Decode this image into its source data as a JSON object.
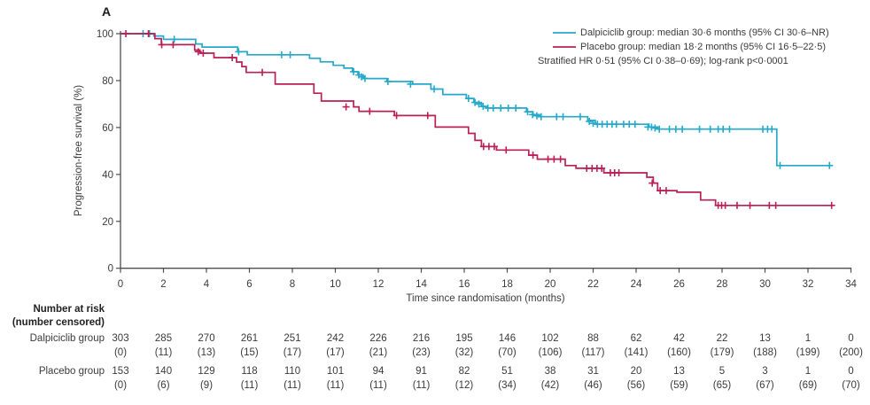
{
  "panel_label": "A",
  "colors": {
    "dalpiciclib": "#25A9CB",
    "placebo": "#BA1F55",
    "axis": "#4d4d4f",
    "text": "#3b3b3c"
  },
  "legend": {
    "entries": [
      {
        "name": "dalpiciclib",
        "label": "Dalpiciclib group: median 30·6 months (95% CI 30·6–NR)",
        "color": "#25A9CB"
      },
      {
        "name": "placebo",
        "label": "Placebo group: median 18·2 months (95% CI 16·5–22·5)",
        "color": "#BA1F55"
      }
    ],
    "note": "Stratified HR 0·51 (95% CI 0·38–0·69); log-rank p<0·0001"
  },
  "chart_data": {
    "type": "line",
    "subtype": "kaplan-meier-step",
    "title": "",
    "xlabel": "Time since randomisation (months)",
    "ylabel": "Progression-free survival (%)",
    "xlim": [
      0,
      34
    ],
    "ylim": [
      0,
      100
    ],
    "xticks": [
      0,
      2,
      4,
      6,
      8,
      10,
      12,
      14,
      16,
      18,
      20,
      22,
      24,
      26,
      28,
      30,
      32,
      34
    ],
    "yticks": [
      0,
      20,
      40,
      60,
      80,
      100
    ],
    "grid": false,
    "legend_position": "top-right",
    "series": [
      {
        "name": "Dalpiciclib group",
        "color": "#25A9CB",
        "end": 33.0,
        "steps": [
          [
            0,
            100
          ],
          [
            1.55,
            99
          ],
          [
            2.0,
            97.6
          ],
          [
            3.5,
            95.6
          ],
          [
            3.8,
            94.3
          ],
          [
            5.45,
            92.3
          ],
          [
            5.9,
            91
          ],
          [
            8.8,
            89.5
          ],
          [
            9.3,
            88
          ],
          [
            9.9,
            86.5
          ],
          [
            10.4,
            85.3
          ],
          [
            10.8,
            83.8
          ],
          [
            11.05,
            82.4
          ],
          [
            11.3,
            80.9
          ],
          [
            12.4,
            79.6
          ],
          [
            13.6,
            78.5
          ],
          [
            14.45,
            76.4
          ],
          [
            15.0,
            74.1
          ],
          [
            16.1,
            72.4
          ],
          [
            16.45,
            70.7
          ],
          [
            16.8,
            69
          ],
          [
            17.05,
            68.3
          ],
          [
            18.9,
            66.7
          ],
          [
            19.2,
            65.5
          ],
          [
            19.5,
            64.6
          ],
          [
            21.75,
            63
          ],
          [
            22.1,
            61.4
          ],
          [
            24.6,
            60.2
          ],
          [
            25.0,
            59.3
          ],
          [
            30.55,
            43.8
          ]
        ],
        "censors": [
          [
            1.05,
            100
          ],
          [
            1.35,
            100
          ],
          [
            2.5,
            97.6
          ],
          [
            5.5,
            92.3
          ],
          [
            7.5,
            91
          ],
          [
            7.9,
            91
          ],
          [
            10.85,
            83.8
          ],
          [
            11.1,
            82.4
          ],
          [
            11.22,
            81.6
          ],
          [
            11.38,
            80.9
          ],
          [
            12.45,
            79.6
          ],
          [
            13.5,
            78.5
          ],
          [
            14.6,
            76.4
          ],
          [
            16.2,
            72.4
          ],
          [
            16.5,
            70.7
          ],
          [
            16.68,
            70
          ],
          [
            16.88,
            69
          ],
          [
            17.1,
            68.3
          ],
          [
            17.35,
            68.3
          ],
          [
            17.7,
            68.3
          ],
          [
            18.05,
            68.3
          ],
          [
            18.4,
            68.3
          ],
          [
            18.95,
            66.7
          ],
          [
            19.18,
            65.5
          ],
          [
            19.38,
            65
          ],
          [
            19.58,
            64.6
          ],
          [
            20.3,
            64.6
          ],
          [
            20.6,
            64.6
          ],
          [
            21.4,
            64.6
          ],
          [
            21.82,
            62.6
          ],
          [
            22.0,
            61.8
          ],
          [
            22.2,
            61.4
          ],
          [
            22.42,
            61.4
          ],
          [
            22.65,
            61.4
          ],
          [
            22.88,
            61.4
          ],
          [
            23.08,
            61.4
          ],
          [
            23.42,
            61.4
          ],
          [
            23.68,
            61.4
          ],
          [
            23.95,
            61.4
          ],
          [
            24.55,
            60.2
          ],
          [
            24.72,
            60.2
          ],
          [
            24.88,
            59.8
          ],
          [
            25.08,
            59.3
          ],
          [
            25.55,
            59.3
          ],
          [
            25.85,
            59.3
          ],
          [
            26.15,
            59.3
          ],
          [
            26.95,
            59.3
          ],
          [
            27.45,
            59.3
          ],
          [
            27.82,
            59.3
          ],
          [
            28.05,
            59.3
          ],
          [
            28.35,
            59.3
          ],
          [
            29.9,
            59.3
          ],
          [
            30.12,
            59.3
          ],
          [
            30.32,
            59.3
          ],
          [
            30.7,
            43.8
          ],
          [
            33.0,
            43.8
          ]
        ]
      },
      {
        "name": "Placebo group",
        "color": "#BA1F55",
        "end": 33.15,
        "steps": [
          [
            0,
            100
          ],
          [
            1.6,
            97.9
          ],
          [
            1.9,
            95.3
          ],
          [
            3.45,
            93
          ],
          [
            3.7,
            91.7
          ],
          [
            4.35,
            89.8
          ],
          [
            5.4,
            87.9
          ],
          [
            5.65,
            86
          ],
          [
            5.85,
            83.5
          ],
          [
            7.2,
            78.5
          ],
          [
            9.0,
            74.6
          ],
          [
            9.35,
            71.3
          ],
          [
            10.85,
            68.8
          ],
          [
            11.1,
            66.9
          ],
          [
            12.75,
            65.1
          ],
          [
            14.65,
            60.2
          ],
          [
            16.2,
            57.5
          ],
          [
            16.5,
            54.5
          ],
          [
            16.8,
            51.9
          ],
          [
            17.5,
            50.4
          ],
          [
            19.0,
            48.2
          ],
          [
            19.4,
            46.5
          ],
          [
            20.7,
            43.8
          ],
          [
            21.2,
            42.6
          ],
          [
            22.5,
            40.7
          ],
          [
            24.5,
            38.8
          ],
          [
            24.8,
            36.3
          ],
          [
            25.0,
            33.1
          ],
          [
            25.9,
            32.4
          ],
          [
            27.0,
            29.1
          ],
          [
            27.7,
            26.8
          ]
        ],
        "censors": [
          [
            0.25,
            100
          ],
          [
            1.3,
            100
          ],
          [
            1.92,
            95.3
          ],
          [
            2.45,
            95.3
          ],
          [
            3.62,
            92.3
          ],
          [
            3.85,
            91.7
          ],
          [
            5.2,
            89.8
          ],
          [
            6.6,
            83.5
          ],
          [
            10.5,
            68.8
          ],
          [
            11.6,
            66.9
          ],
          [
            12.85,
            65.1
          ],
          [
            14.3,
            65.1
          ],
          [
            16.9,
            51.9
          ],
          [
            17.15,
            51.9
          ],
          [
            17.4,
            51.9
          ],
          [
            17.95,
            50.4
          ],
          [
            19.2,
            48.2
          ],
          [
            19.9,
            46.5
          ],
          [
            20.18,
            46.5
          ],
          [
            20.48,
            46.5
          ],
          [
            21.7,
            42.6
          ],
          [
            21.95,
            42.6
          ],
          [
            22.18,
            42.6
          ],
          [
            22.4,
            42.6
          ],
          [
            22.8,
            40.7
          ],
          [
            23.0,
            40.7
          ],
          [
            23.2,
            40.7
          ],
          [
            24.75,
            36.3
          ],
          [
            25.12,
            33.1
          ],
          [
            25.4,
            33.1
          ],
          [
            27.82,
            26.8
          ],
          [
            27.98,
            26.8
          ],
          [
            28.15,
            26.8
          ],
          [
            28.7,
            26.8
          ],
          [
            29.3,
            26.8
          ],
          [
            30.2,
            26.8
          ],
          [
            30.5,
            26.8
          ],
          [
            33.1,
            26.8
          ]
        ]
      }
    ]
  },
  "risk_table": {
    "header_line1": "Number at risk",
    "header_line2": "(number censored)",
    "timepoints": [
      0,
      2,
      4,
      6,
      8,
      10,
      12,
      14,
      16,
      18,
      20,
      22,
      24,
      26,
      28,
      30,
      32,
      34
    ],
    "rows": [
      {
        "label": "Dalpiciclib group",
        "at_risk": [
          303,
          285,
          270,
          261,
          251,
          242,
          226,
          216,
          195,
          146,
          102,
          88,
          62,
          42,
          22,
          13,
          1,
          0
        ],
        "censored": [
          0,
          11,
          13,
          15,
          17,
          17,
          21,
          23,
          32,
          70,
          106,
          117,
          141,
          160,
          179,
          188,
          199,
          200
        ]
      },
      {
        "label": "Placebo group",
        "at_risk": [
          153,
          140,
          129,
          118,
          110,
          101,
          94,
          91,
          82,
          51,
          38,
          31,
          20,
          13,
          5,
          3,
          1,
          0
        ],
        "censored": [
          0,
          6,
          9,
          11,
          11,
          11,
          11,
          11,
          12,
          34,
          42,
          46,
          56,
          59,
          65,
          67,
          69,
          70
        ]
      }
    ]
  }
}
